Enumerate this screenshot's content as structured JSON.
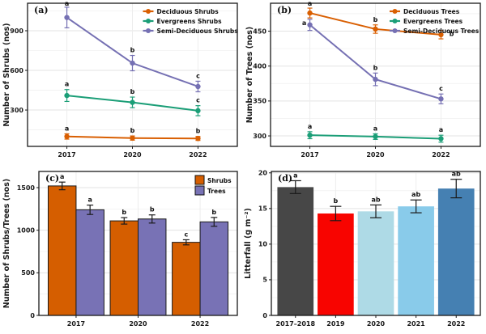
{
  "figure": {
    "background": "#ffffff",
    "panel_labels": [
      "(a)",
      "(b)",
      "(c)",
      "(d)"
    ]
  },
  "chart_data": [
    {
      "id": "a",
      "type": "line",
      "panel_label": "(a)",
      "ylabel": "Number of Shrubs (nos)",
      "categories": [
        "2017",
        "2020",
        "2022"
      ],
      "ylim": [
        25,
        1108
      ],
      "yticks": [
        300,
        600,
        900
      ],
      "grid": true,
      "legend_pos": "top-right",
      "series": [
        {
          "name": "Deciduous Shrubs",
          "color": "#D95F02",
          "values": [
            100,
            88,
            85
          ],
          "errors": [
            20,
            16,
            15
          ],
          "letters": [
            "a",
            "b",
            "b"
          ]
        },
        {
          "name": "Evergreens Shrubs",
          "color": "#1B9E77",
          "values": [
            410,
            358,
            295
          ],
          "errors": [
            45,
            40,
            38
          ],
          "letters": [
            "a",
            "b",
            "c"
          ]
        },
        {
          "name": "Semi-Deciduous Shrubs",
          "color": "#7570B3",
          "values": [
            1000,
            655,
            478
          ],
          "errors": [
            78,
            58,
            40
          ],
          "letters": [
            "a",
            "b",
            "c"
          ]
        }
      ]
    },
    {
      "id": "b",
      "type": "line",
      "panel_label": "(b)",
      "ylabel": "Number of Trees (nos)",
      "categories": [
        "2017",
        "2020",
        "2022"
      ],
      "ylim": [
        285,
        490
      ],
      "yticks": [
        300,
        350,
        400,
        450
      ],
      "grid": true,
      "legend_pos": "top-right",
      "series": [
        {
          "name": "Deciduous Trees",
          "color": "#D95F02",
          "values": [
            476,
            453,
            445
          ],
          "errors": [
            7,
            6,
            6
          ],
          "letters": [
            "a",
            "b",
            "b"
          ],
          "letter_offsets": [
            [
              0,
              0
            ],
            [
              0,
              0
            ],
            [
              13,
              11
            ]
          ]
        },
        {
          "name": "Evergreens Trees",
          "color": "#1B9E77",
          "values": [
            301,
            299,
            296
          ],
          "errors": [
            5,
            4,
            5
          ],
          "letters": [
            "a",
            "a",
            "a"
          ]
        },
        {
          "name": "Semi-Deciduous Trees",
          "color": "#7570B3",
          "values": [
            459,
            381,
            353
          ],
          "errors": [
            8,
            9,
            7
          ],
          "letters": [
            "a",
            "b",
            "c"
          ],
          "letter_offsets": [
            [
              -7,
              11
            ],
            [
              0,
              0
            ],
            [
              0,
              0
            ]
          ]
        }
      ]
    },
    {
      "id": "c",
      "type": "grouped-bar",
      "panel_label": "(c)",
      "ylabel": "Number of Shrubs/Trees (nos)",
      "categories": [
        "2017",
        "2020",
        "2022"
      ],
      "ylim": [
        0,
        1690
      ],
      "yticks": [
        0,
        500,
        1000,
        1500
      ],
      "grid": true,
      "legend_pos": "top-right",
      "series": [
        {
          "name": "Shrubs",
          "color": "#D55E00",
          "values": [
            1520,
            1110,
            858
          ],
          "errors": [
            45,
            38,
            30
          ],
          "letters": [
            "a",
            "b",
            "c"
          ]
        },
        {
          "name": "Trees",
          "color": "#7872B5",
          "values": [
            1240,
            1132,
            1098
          ],
          "errors": [
            55,
            48,
            52
          ],
          "letters": [
            "a",
            "b",
            "b"
          ]
        }
      ]
    },
    {
      "id": "d",
      "type": "bar",
      "panel_label": "(d)",
      "ylabel": "Litterfall (g m⁻²)",
      "categories": [
        "2017–2018",
        "2019",
        "2020",
        "2021",
        "2022"
      ],
      "ylim": [
        0,
        20.2
      ],
      "yticks": [
        0,
        5,
        10,
        15,
        20
      ],
      "grid": true,
      "values": [
        18.0,
        14.3,
        14.6,
        15.3,
        17.8
      ],
      "errors": [
        0.9,
        1.0,
        0.9,
        0.9,
        1.3
      ],
      "letters": [
        "a",
        "b",
        "ab",
        "ab",
        "ab"
      ],
      "colors": [
        "#474747",
        "#F80400",
        "#AEDAE6",
        "#89CBEA",
        "#4580B2"
      ]
    }
  ]
}
